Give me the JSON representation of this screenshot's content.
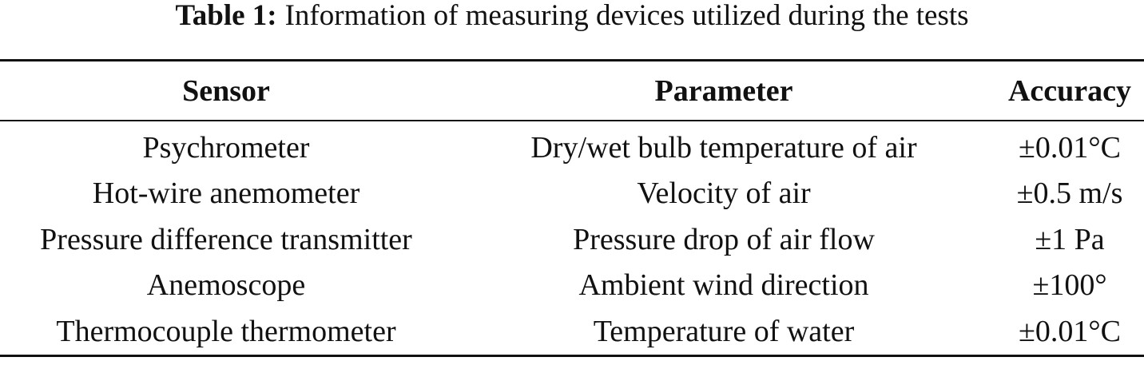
{
  "caption": {
    "label": "Table 1:",
    "text": "Information of measuring devices utilized during the tests"
  },
  "table": {
    "header": [
      "Sensor",
      "Parameter",
      "Accuracy"
    ],
    "rows": [
      [
        "Psychrometer",
        "Dry/wet bulb temperature of air",
        "±0.01°C"
      ],
      [
        "Hot-wire anemometer",
        "Velocity of air",
        "±0.5 m/s"
      ],
      [
        "Pressure difference transmitter",
        "Pressure drop of air flow",
        "±1 Pa"
      ],
      [
        "Anemoscope",
        "Ambient wind direction",
        "±100°"
      ],
      [
        "Thermocouple thermometer",
        "Temperature of water",
        "±0.01°C"
      ]
    ]
  }
}
